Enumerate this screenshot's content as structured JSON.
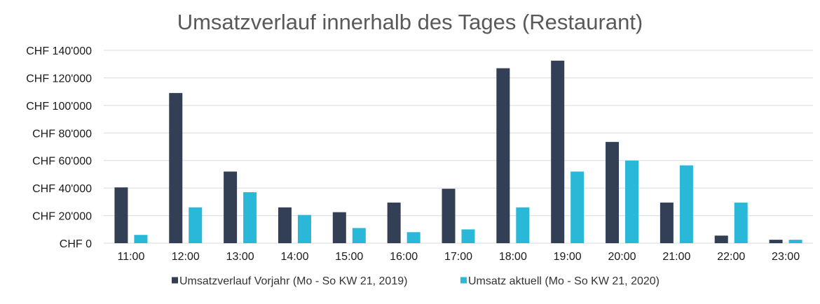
{
  "chart_data": {
    "type": "bar",
    "title": "Umsatzverlauf innerhalb des Tages (Restaurant)",
    "xlabel": "",
    "ylabel": "",
    "ylim": [
      0,
      140000
    ],
    "y_ticks": [
      0,
      20000,
      40000,
      60000,
      80000,
      100000,
      120000,
      140000
    ],
    "y_tick_labels": [
      "CHF 0",
      "CHF 20'000",
      "CHF 40'000",
      "CHF 60'000",
      "CHF 80'000",
      "CHF 100'000",
      "CHF 120'000",
      "CHF 140'000"
    ],
    "grid": true,
    "legend_position": "bottom",
    "categories": [
      "11:00",
      "12:00",
      "13:00",
      "14:00",
      "15:00",
      "16:00",
      "17:00",
      "18:00",
      "19:00",
      "20:00",
      "21:00",
      "22:00",
      "23:00"
    ],
    "series": [
      {
        "name": "Umsatzverlauf Vorjahr (Mo - So KW 21, 2019)",
        "color": "#323f55",
        "values": [
          40500,
          109000,
          52000,
          26000,
          22500,
          29500,
          39500,
          127000,
          132500,
          73500,
          29500,
          5500,
          2500
        ]
      },
      {
        "name": "Umsatz aktuell (Mo - So KW 21, 2020)",
        "color": "#29b8d8",
        "values": [
          6000,
          26000,
          37000,
          20500,
          11000,
          8000,
          10000,
          26000,
          52000,
          60000,
          56500,
          29500,
          2500
        ]
      }
    ]
  }
}
